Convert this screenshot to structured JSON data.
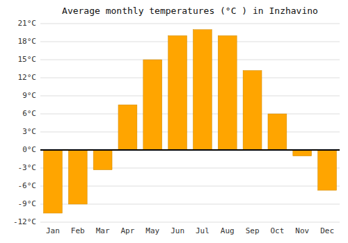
{
  "chart_data": {
    "type": "bar",
    "title": "Average monthly temperatures (°C ) in Inzhavino",
    "categories": [
      "Jan",
      "Feb",
      "Mar",
      "Apr",
      "May",
      "Jun",
      "Jul",
      "Aug",
      "Sep",
      "Oct",
      "Nov",
      "Dec"
    ],
    "values": [
      -10.5,
      -9.0,
      -3.3,
      7.5,
      15.0,
      19.0,
      20.0,
      19.0,
      13.2,
      6.0,
      -1.0,
      -6.7
    ],
    "color": "#FFA500",
    "ylim": [
      -12,
      21
    ],
    "yticks": [
      {
        "value": -12,
        "label": "-12°C"
      },
      {
        "value": -9,
        "label": "-9°C"
      },
      {
        "value": -6,
        "label": "-6°C"
      },
      {
        "value": -3,
        "label": "-3°C"
      },
      {
        "value": 0,
        "label": "0°C"
      },
      {
        "value": 3,
        "label": "3°C"
      },
      {
        "value": 6,
        "label": "6°C"
      },
      {
        "value": 9,
        "label": "9°C"
      },
      {
        "value": 12,
        "label": "12°C"
      },
      {
        "value": 15,
        "label": "15°C"
      },
      {
        "value": 18,
        "label": "18°C"
      },
      {
        "value": 21,
        "label": "21°C"
      }
    ],
    "grid": true
  }
}
